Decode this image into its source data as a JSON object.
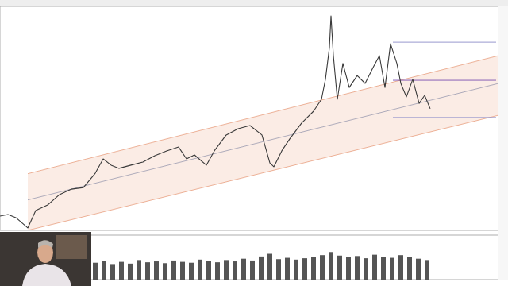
{
  "chart_data": {
    "type": "line",
    "tick_labels": false,
    "grid": false,
    "color": "#3a3a3a",
    "xlim": [
      0,
      628
    ],
    "ylim": [
      0,
      100
    ],
    "x": [
      0,
      10,
      20,
      35,
      45,
      60,
      75,
      90,
      105,
      120,
      130,
      140,
      150,
      165,
      180,
      195,
      210,
      225,
      235,
      245,
      260,
      270,
      285,
      300,
      315,
      330,
      340,
      345,
      355,
      365,
      380,
      395,
      405,
      410,
      415,
      417,
      420,
      425,
      432,
      440,
      450,
      460,
      470,
      478,
      485,
      492,
      500,
      505,
      512,
      520,
      528,
      535,
      542
    ],
    "values": [
      6.4,
      7.1,
      5.7,
      1.1,
      8.9,
      11.3,
      16.0,
      18.4,
      19.1,
      25.5,
      31.9,
      29.1,
      27.7,
      29.1,
      30.5,
      33.3,
      35.5,
      37.2,
      31.9,
      33.7,
      29.1,
      35.5,
      42.6,
      45.4,
      46.8,
      42.6,
      30.1,
      28.4,
      35.5,
      40.8,
      47.9,
      53.2,
      58.5,
      67.4,
      81.6,
      95.7,
      78.0,
      58.5,
      74.5,
      63.8,
      69.1,
      65.6,
      72.7,
      78.0,
      63.8,
      83.3,
      74.5,
      65.6,
      59.6,
      67.4,
      56.7,
      60.3,
      54.3
    ],
    "channel": {
      "x": [
        35,
        628
      ],
      "upper": [
        25.3,
        78.0
      ],
      "middle": [
        13.6,
        65.6
      ],
      "lower": [
        0,
        51.4
      ],
      "color": "#f4c9b4"
    },
    "levels": {
      "x": [
        495,
        625
      ],
      "values": [
        84.0,
        67.0,
        50.4
      ],
      "colors": [
        "#8c8cc8",
        "#7a4fb0",
        "#8c8cc8"
      ]
    },
    "volume": {
      "ylim": [
        0,
        100
      ],
      "color": "#555555",
      "x": [
        120,
        131,
        142,
        153,
        164,
        175,
        186,
        197,
        208,
        219,
        230,
        241,
        252,
        263,
        274,
        285,
        296,
        307,
        318,
        329,
        340,
        351,
        362,
        373,
        384,
        395,
        406,
        417,
        428,
        439,
        450,
        461,
        472,
        483,
        494,
        505,
        516,
        527,
        538
      ],
      "values": [
        38,
        42,
        35,
        40,
        36,
        44,
        39,
        41,
        37,
        43,
        40,
        38,
        45,
        42,
        39,
        44,
        41,
        47,
        43,
        52,
        58,
        46,
        49,
        45,
        48,
        50,
        55,
        62,
        54,
        50,
        53,
        48,
        56,
        51,
        49,
        55,
        50,
        47,
        44
      ]
    }
  }
}
